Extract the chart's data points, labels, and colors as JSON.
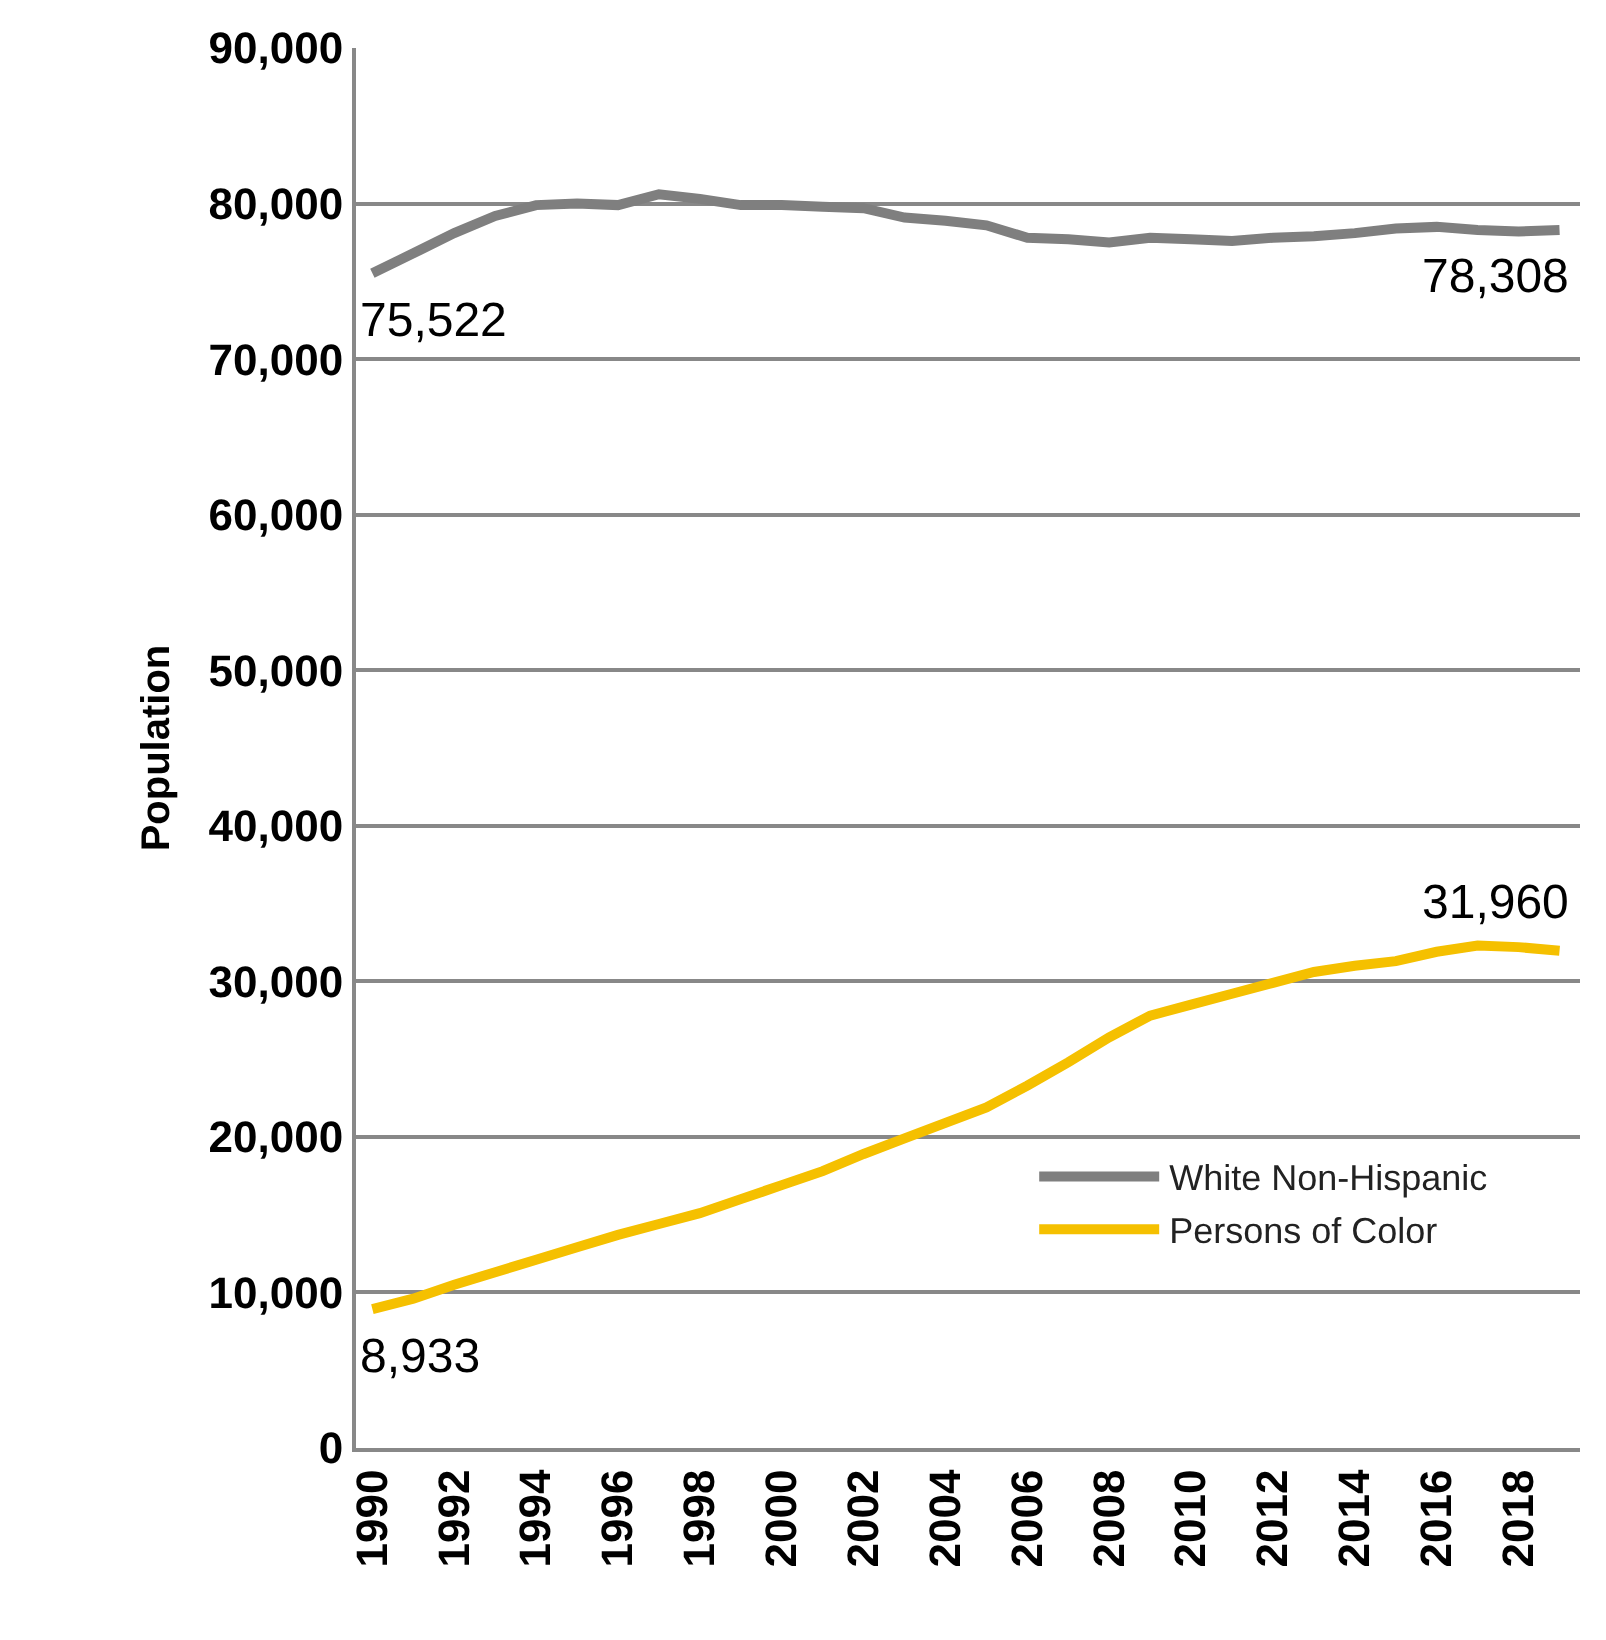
{
  "chart_data": {
    "type": "line",
    "ylabel": "Population",
    "x": [
      1990,
      1991,
      1992,
      1993,
      1994,
      1995,
      1996,
      1997,
      1998,
      1999,
      2000,
      2001,
      2002,
      2003,
      2004,
      2005,
      2006,
      2007,
      2008,
      2009,
      2010,
      2011,
      2012,
      2013,
      2014,
      2015,
      2016,
      2017,
      2018,
      2019
    ],
    "series": [
      {
        "name": "White Non-Hispanic",
        "color": "#7f7f7f",
        "values": [
          75522,
          76800,
          78100,
          79200,
          79900,
          80000,
          79900,
          80600,
          80300,
          79900,
          79900,
          79800,
          79700,
          79100,
          78900,
          78600,
          77800,
          77700,
          77500,
          77800,
          77700,
          77600,
          77800,
          77900,
          78100,
          78400,
          78500,
          78300,
          78200,
          78308
        ],
        "value_labels": [
          "75,522",
          null,
          null,
          null,
          null,
          null,
          null,
          null,
          null,
          null,
          null,
          null,
          null,
          null,
          null,
          null,
          null,
          null,
          null,
          null,
          null,
          null,
          null,
          null,
          null,
          null,
          null,
          null,
          null,
          "78,308"
        ]
      },
      {
        "name": "Persons of Color",
        "color": "#f5c000",
        "values": [
          8933,
          9600,
          10500,
          11300,
          12100,
          12900,
          13700,
          14400,
          15100,
          16000,
          16900,
          17800,
          18900,
          19900,
          20900,
          21900,
          23300,
          24800,
          26400,
          27800,
          28500,
          29200,
          29900,
          30600,
          31000,
          31300,
          31900,
          32300,
          32200,
          31960
        ],
        "value_labels": [
          "8,933",
          null,
          null,
          null,
          null,
          null,
          null,
          null,
          null,
          null,
          null,
          null,
          null,
          null,
          null,
          null,
          null,
          null,
          null,
          null,
          null,
          null,
          null,
          null,
          null,
          null,
          null,
          null,
          null,
          "31,960"
        ]
      }
    ],
    "xlim": [
      1989.6,
      2019.5
    ],
    "xticks": [
      1990,
      1992,
      1994,
      1996,
      1998,
      2000,
      2002,
      2004,
      2006,
      2008,
      2010,
      2012,
      2014,
      2016,
      2018
    ],
    "ylim": [
      0,
      90000
    ],
    "yticks": [
      0,
      {
        "value": 10000,
        "label": "10,000"
      },
      {
        "value": 20000,
        "label": "20,000"
      },
      {
        "value": 30000,
        "label": "30,000"
      },
      {
        "value": 40000,
        "label": "40,000"
      },
      {
        "value": 50000,
        "label": "50,000"
      },
      {
        "value": 60000,
        "label": "60,000"
      },
      {
        "value": 70000,
        "label": "70,000"
      },
      {
        "value": 80000,
        "label": "80,000"
      },
      {
        "value": 90000,
        "label": "90,000"
      }
    ],
    "grid": "y",
    "legend": "bottom right",
    "marker": "none",
    "line_style": "solid"
  }
}
